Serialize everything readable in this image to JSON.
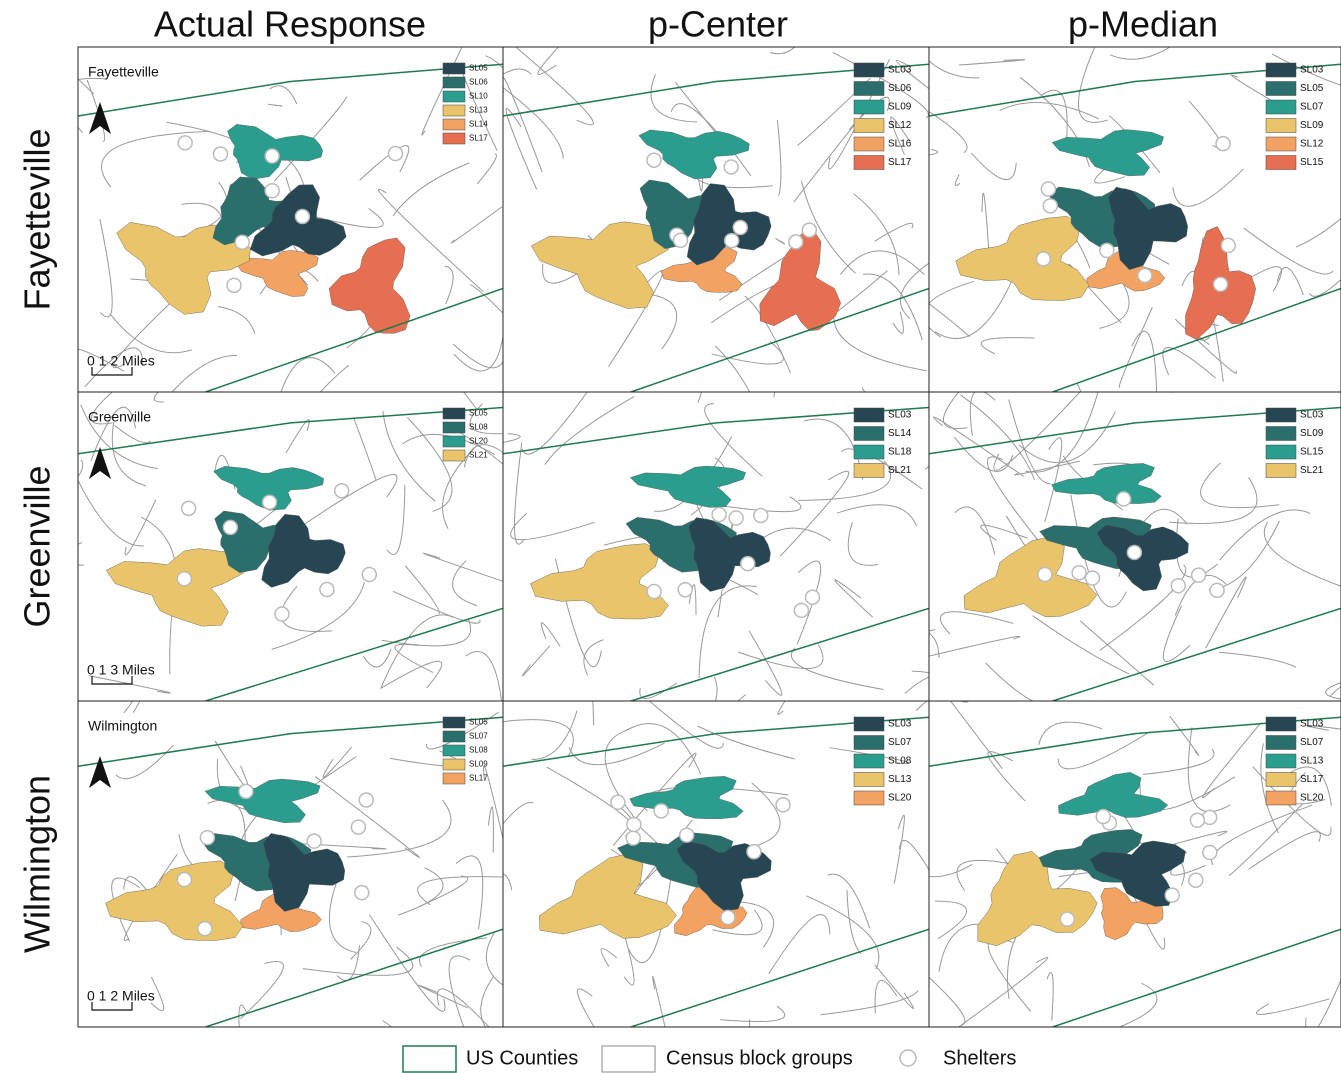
{
  "columns": [
    "Actual Response",
    "p-Center",
    "p-Median"
  ],
  "rows": [
    {
      "name": "Fayetteville",
      "map_label": "Fayetteville",
      "scale_label": "0 1 2 Miles",
      "panels": [
        {
          "legend": [
            {
              "label": "SL05",
              "color": "#264653"
            },
            {
              "label": "SL06",
              "color": "#2a6f6c"
            },
            {
              "label": "SL10",
              "color": "#2a9d8f"
            },
            {
              "label": "SL13",
              "color": "#e9c46a"
            },
            {
              "label": "SL14",
              "color": "#f4a261"
            },
            {
              "label": "SL17",
              "color": "#e76f51"
            }
          ]
        },
        {
          "legend": [
            {
              "label": "SL03",
              "color": "#264653"
            },
            {
              "label": "SL06",
              "color": "#2a6f6c"
            },
            {
              "label": "SL09",
              "color": "#2a9d8f"
            },
            {
              "label": "SL12",
              "color": "#e9c46a"
            },
            {
              "label": "SL16",
              "color": "#f4a261"
            },
            {
              "label": "SL17",
              "color": "#e76f51"
            }
          ]
        },
        {
          "legend": [
            {
              "label": "SL03",
              "color": "#264653"
            },
            {
              "label": "SL05",
              "color": "#2a6f6c"
            },
            {
              "label": "SL07",
              "color": "#2a9d8f"
            },
            {
              "label": "SL09",
              "color": "#e9c46a"
            },
            {
              "label": "SL12",
              "color": "#f4a261"
            },
            {
              "label": "SL15",
              "color": "#e76f51"
            }
          ]
        }
      ]
    },
    {
      "name": "Greenville",
      "map_label": "Greenville",
      "scale_label": "0 1 3 Miles",
      "panels": [
        {
          "legend": [
            {
              "label": "SL05",
              "color": "#264653"
            },
            {
              "label": "SL08",
              "color": "#2a6f6c"
            },
            {
              "label": "SL20",
              "color": "#2a9d8f"
            },
            {
              "label": "SL21",
              "color": "#e9c46a"
            }
          ]
        },
        {
          "legend": [
            {
              "label": "SL03",
              "color": "#264653"
            },
            {
              "label": "SL14",
              "color": "#2a6f6c"
            },
            {
              "label": "SL18",
              "color": "#2a9d8f"
            },
            {
              "label": "SL21",
              "color": "#e9c46a"
            }
          ]
        },
        {
          "legend": [
            {
              "label": "SL03",
              "color": "#264653"
            },
            {
              "label": "SL09",
              "color": "#2a6f6c"
            },
            {
              "label": "SL15",
              "color": "#2a9d8f"
            },
            {
              "label": "SL21",
              "color": "#e9c46a"
            }
          ]
        }
      ]
    },
    {
      "name": "Wilmington",
      "map_label": "Wilmington",
      "scale_label": "0 1 2 Miles",
      "panels": [
        {
          "legend": [
            {
              "label": "SL05",
              "color": "#264653"
            },
            {
              "label": "SL07",
              "color": "#2a6f6c"
            },
            {
              "label": "SL08",
              "color": "#2a9d8f"
            },
            {
              "label": "SL09",
              "color": "#e9c46a"
            },
            {
              "label": "SL17",
              "color": "#f4a261"
            }
          ]
        },
        {
          "legend": [
            {
              "label": "SL03",
              "color": "#264653"
            },
            {
              "label": "SL07",
              "color": "#2a6f6c"
            },
            {
              "label": "SL08",
              "color": "#2a9d8f"
            },
            {
              "label": "SL13",
              "color": "#e9c46a"
            },
            {
              "label": "SL20",
              "color": "#f4a261"
            }
          ]
        },
        {
          "legend": [
            {
              "label": "SL03",
              "color": "#264653"
            },
            {
              "label": "SL07",
              "color": "#2a6f6c"
            },
            {
              "label": "SL13",
              "color": "#2a9d8f"
            },
            {
              "label": "SL17",
              "color": "#e9c46a"
            },
            {
              "label": "SL20",
              "color": "#f4a261"
            }
          ]
        }
      ]
    }
  ],
  "legend": {
    "counties": "US Counties",
    "block_groups": "Census block groups",
    "shelters": "Shelters"
  }
}
